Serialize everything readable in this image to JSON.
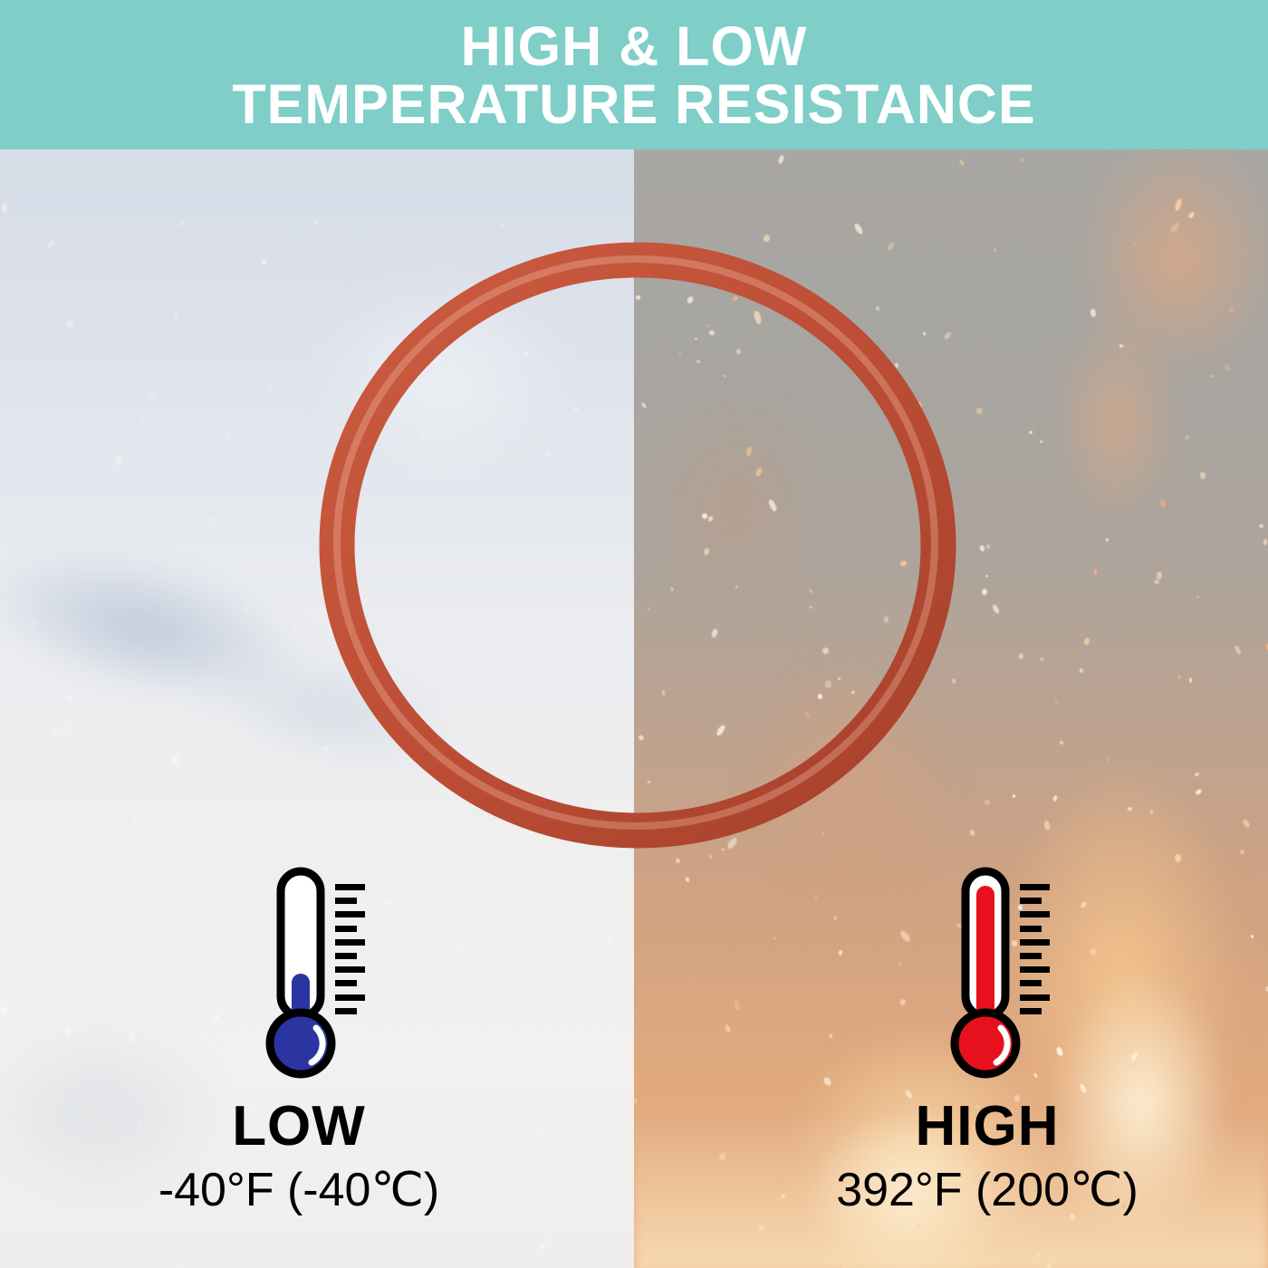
{
  "banner": {
    "line1": "HIGH & LOW",
    "line2": "TEMPERATURE RESISTANCE",
    "background_color": "#7fcec8",
    "text_color": "#ffffff"
  },
  "o_ring": {
    "color": "#c05238"
  },
  "low_side": {
    "label": "LOW",
    "temperature": "-40°F (-40℃)",
    "mercury_color": "#2b35a2",
    "background": "snow"
  },
  "high_side": {
    "label": "HIGH",
    "temperature": "392°F (200℃)",
    "mercury_color": "#e6111d",
    "background": "fire"
  }
}
